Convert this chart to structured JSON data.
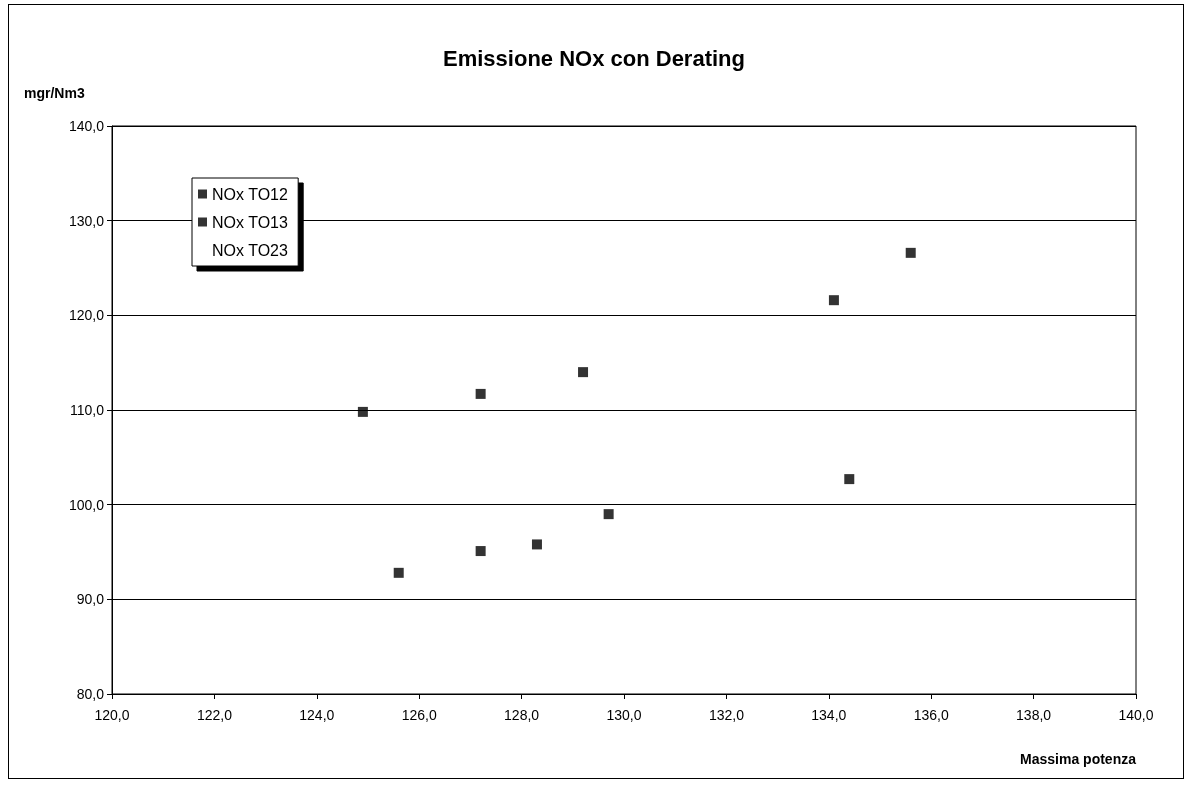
{
  "chart_data": {
    "type": "scatter",
    "title": "Emissione NOx con Derating",
    "ylabel": "mgr/Nm3",
    "xlabel": "Massima potenza",
    "series": [
      {
        "name": "NOx TO12",
        "color": "#000000",
        "x": [
          124.9,
          127.2,
          129.2,
          134.1,
          135.6
        ],
        "values": [
          109.8,
          111.7,
          114.0,
          121.6,
          126.6
        ]
      },
      {
        "name": "NOx TO13",
        "color": "#000000",
        "x": [
          125.6,
          127.2,
          128.3,
          129.7,
          134.4
        ],
        "values": [
          92.8,
          95.1,
          95.8,
          99.0,
          102.7
        ]
      },
      {
        "name": "NOx TO23"
      }
    ],
    "xlim": [
      120,
      140
    ],
    "xticks": [
      {
        "value": 120,
        "label": "120,0"
      },
      {
        "value": 122,
        "label": "122,0"
      },
      {
        "value": 124,
        "label": "124,0"
      },
      {
        "value": 126,
        "label": "126,0"
      },
      {
        "value": 128,
        "label": "128,0"
      },
      {
        "value": 130,
        "label": "130,0"
      },
      {
        "value": 132,
        "label": "132,0"
      },
      {
        "value": 134,
        "label": "134,0"
      },
      {
        "value": 136,
        "label": "136,0"
      },
      {
        "value": 138,
        "label": "138,0"
      },
      {
        "value": 140,
        "label": "140,0"
      }
    ],
    "ylim": [
      80,
      140
    ],
    "yticks": [
      {
        "value": 80,
        "label": "80,0"
      },
      {
        "value": 90,
        "label": "90,0"
      },
      {
        "value": 100,
        "label": "100,0"
      },
      {
        "value": 110,
        "label": "110,0"
      },
      {
        "value": 120,
        "label": "120,0"
      },
      {
        "value": 130,
        "label": "130,0"
      },
      {
        "value": 140,
        "label": "140,0"
      }
    ],
    "grid": "y",
    "legend": "top left",
    "marker": "square"
  }
}
